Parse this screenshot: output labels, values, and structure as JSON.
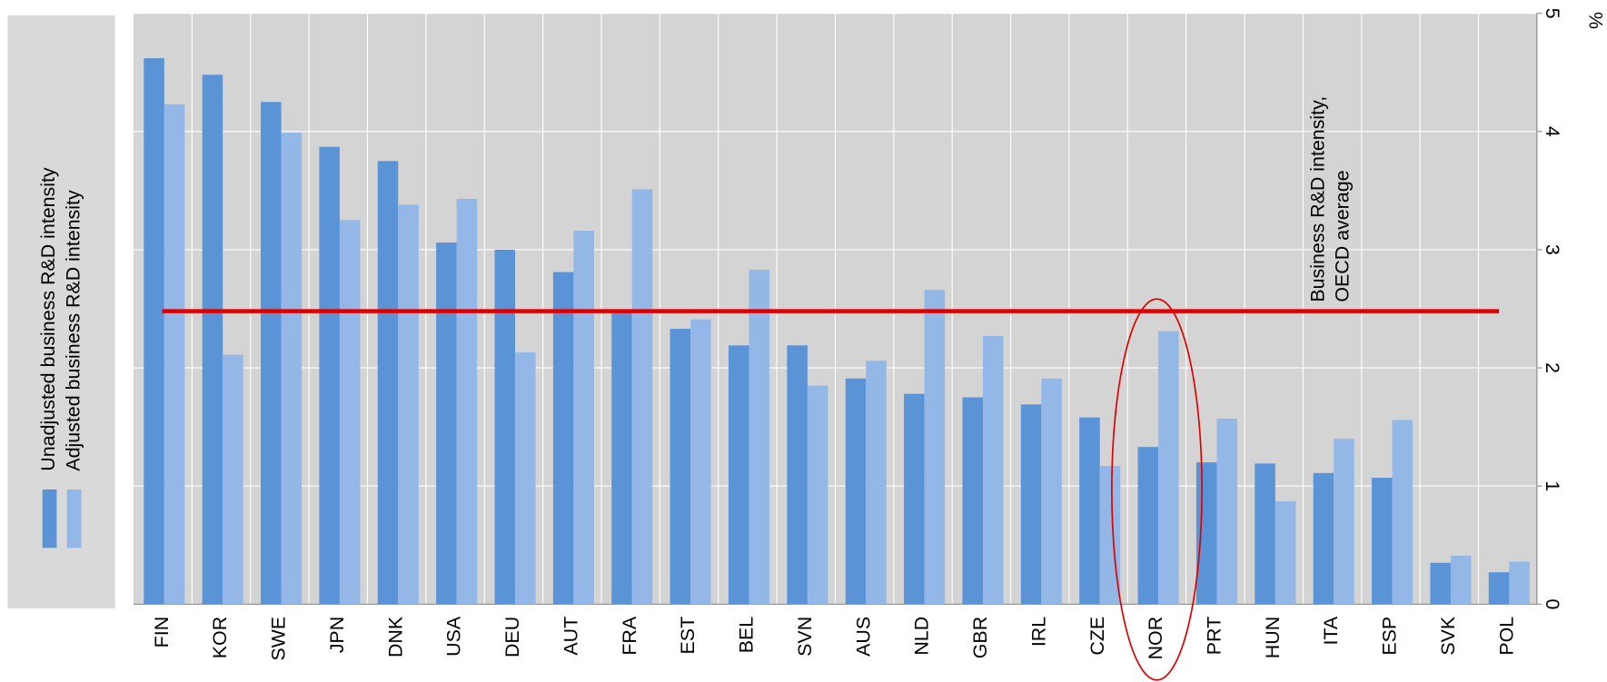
{
  "chart_data": {
    "type": "bar",
    "categories": [
      "FIN",
      "KOR",
      "SWE",
      "JPN",
      "DNK",
      "USA",
      "DEU",
      "AUT",
      "FRA",
      "EST",
      "BEL",
      "SVN",
      "AUS",
      "NLD",
      "GBR",
      "IRL",
      "CZE",
      "NOR",
      "PRT",
      "HUN",
      "ITA",
      "ESP",
      "SVK",
      "POL"
    ],
    "series": [
      {
        "name": "Unadjusted business R&D intensity",
        "color": "#5b93d7",
        "values": [
          4.62,
          4.48,
          4.25,
          3.87,
          3.75,
          3.06,
          3.0,
          2.81,
          2.47,
          2.33,
          2.19,
          2.19,
          1.91,
          1.78,
          1.75,
          1.69,
          1.58,
          1.33,
          1.2,
          1.19,
          1.11,
          1.07,
          0.35,
          0.27
        ]
      },
      {
        "name": "Adjusted business R&D intensity",
        "color": "#93b8e8",
        "values": [
          4.23,
          2.11,
          3.99,
          3.25,
          3.38,
          3.43,
          2.13,
          3.16,
          3.51,
          2.41,
          2.83,
          1.85,
          2.06,
          2.66,
          2.27,
          1.91,
          1.17,
          2.31,
          1.57,
          0.87,
          1.4,
          1.56,
          0.41,
          0.36
        ]
      }
    ],
    "ylim": [
      0,
      5
    ],
    "yticks": [
      0,
      1,
      2,
      3,
      4,
      5
    ],
    "y_unit": "%",
    "grid": true,
    "reference_line": {
      "value": 2.48,
      "color": "#e00000"
    },
    "annotation_lines": [
      "Business R&D intensity,",
      "OECD average"
    ],
    "highlight": 17
  }
}
